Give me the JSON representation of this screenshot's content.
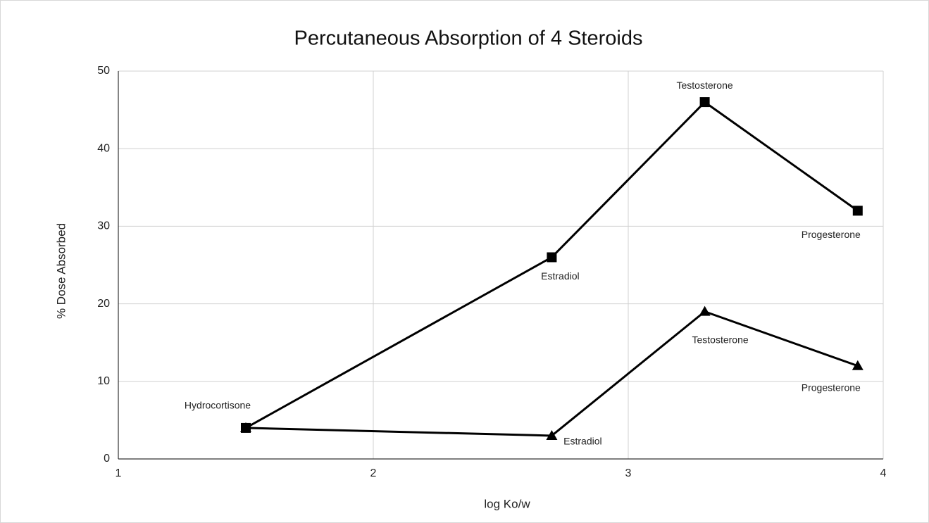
{
  "chart_data": {
    "type": "line",
    "title": "Percutaneous Absorption of 4 Steroids",
    "x_label": "log Ko/w",
    "y_label": "% Dose Absorbed",
    "x": [
      1.5,
      2.7,
      3.3,
      3.9
    ],
    "series": [
      {
        "color": "#000000",
        "marker": "square",
        "values": [
          4,
          26,
          46,
          32
        ],
        "labels": [
          "Hydrocortisone",
          "Estradiol",
          "Testosterone",
          "Progesterone"
        ]
      },
      {
        "color": "#000000",
        "marker": "triangle",
        "values": [
          4,
          3,
          19,
          12
        ],
        "labels": [
          null,
          "Estradiol",
          "Testosterone",
          "Progesterone"
        ]
      }
    ],
    "xlim": [
      1,
      4
    ],
    "xticks": [
      1,
      2,
      3,
      4
    ],
    "ylim": [
      0,
      50
    ],
    "yticks": [
      0,
      10,
      20,
      30,
      40,
      50
    ],
    "grid": true
  }
}
